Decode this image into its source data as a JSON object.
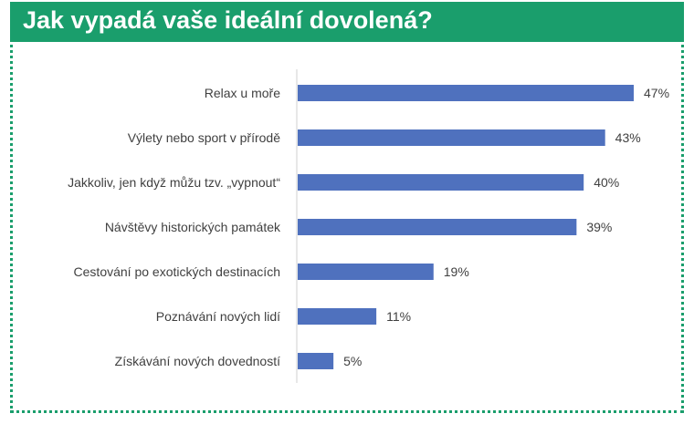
{
  "chart_data": {
    "type": "bar",
    "orientation": "horizontal",
    "title": "Jak vypadá vaše ideální dovolená?",
    "categories": [
      "Relax u moře",
      "Výlety nebo sport v přírodě",
      "Jakkoliv, jen když můžu tzv. „vypnout“",
      "Návštěvy historických památek",
      "Cestování po exotických destinacích",
      "Poznávání nových lidí",
      "Získávání nových dovedností"
    ],
    "values": [
      47,
      43,
      40,
      39,
      19,
      11,
      5
    ],
    "value_labels": [
      "47%",
      "43%",
      "40%",
      "39%",
      "19%",
      "11%",
      "5%"
    ],
    "unit": "%",
    "xlim": [
      0,
      50
    ],
    "grid": false,
    "legend": "none",
    "colors": {
      "bar": "#4f71be",
      "header": "#1a9e6c",
      "border": "#1a9e6c"
    }
  }
}
